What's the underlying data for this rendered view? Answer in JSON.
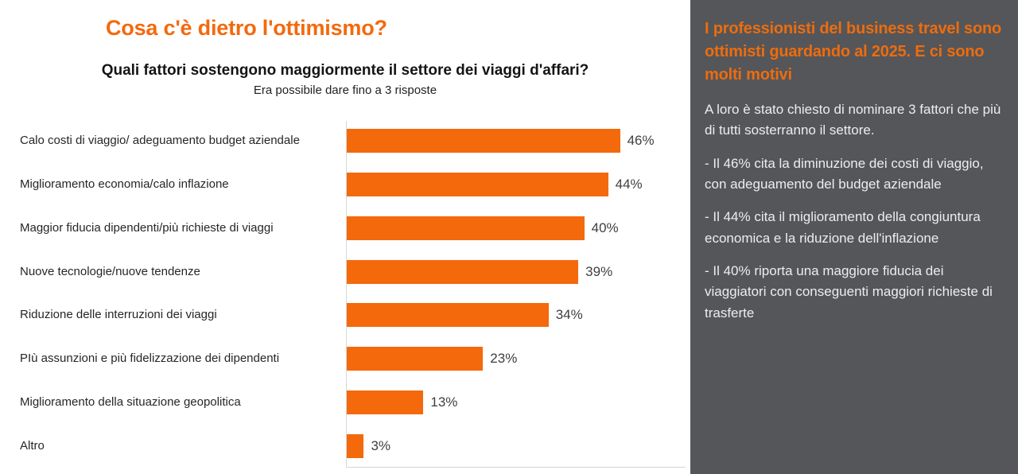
{
  "title": "Cosa c'è dietro l'ottimismo?",
  "colors": {
    "accent_orange": "#F4690C",
    "sidebar_heading_orange": "#EE6C0D",
    "sidebar_background": "#54565A",
    "axis_gray": "#D6D6D6",
    "value_label_gray": "#3F3F3F",
    "sidebar_text": "#EDEDED"
  },
  "chart_data": {
    "type": "bar",
    "orientation": "horizontal",
    "title": "Quali fattori sostengono maggiormente il settore dei viaggi d'affari?",
    "subtitle": "Era possibile dare fino a 3 risposte",
    "categories": [
      "Calo costi di viaggio/ adeguamento budget aziendale",
      "Miglioramento economia/calo inflazione",
      "Maggior fiducia dipendenti/più richieste di viaggi",
      "Nuove tecnologie/nuove tendenze",
      "Riduzione delle interruzioni dei viaggi",
      "PIù assunzioni e più fidelizzazione dei dipendenti",
      "Miglioramento della situazione geopolitica",
      "Altro"
    ],
    "values": [
      46,
      44,
      40,
      39,
      34,
      23,
      13,
      3
    ],
    "value_suffix": "%",
    "data_labels": "outside-end",
    "bar_color": "#F4690C",
    "xlim": [
      0,
      57
    ],
    "grid": false,
    "legend": "none"
  },
  "sidebar": {
    "heading": "I professionisti del business travel sono ottimisti guardando al 2025. E ci sono molti motivi",
    "paragraphs": [
      "A loro è stato chiesto di nominare 3 fattori che più di tutti sosterranno il settore.",
      "- Il 46% cita la diminuzione dei costi di viaggio, con adeguamento del budget aziendale",
      "- Il 44% cita il miglioramento della congiuntura economica e la riduzione dell'inflazione",
      "- Il 40% riporta una maggiore fiducia dei viaggiatori con conseguenti maggiori richieste di trasferte"
    ]
  }
}
